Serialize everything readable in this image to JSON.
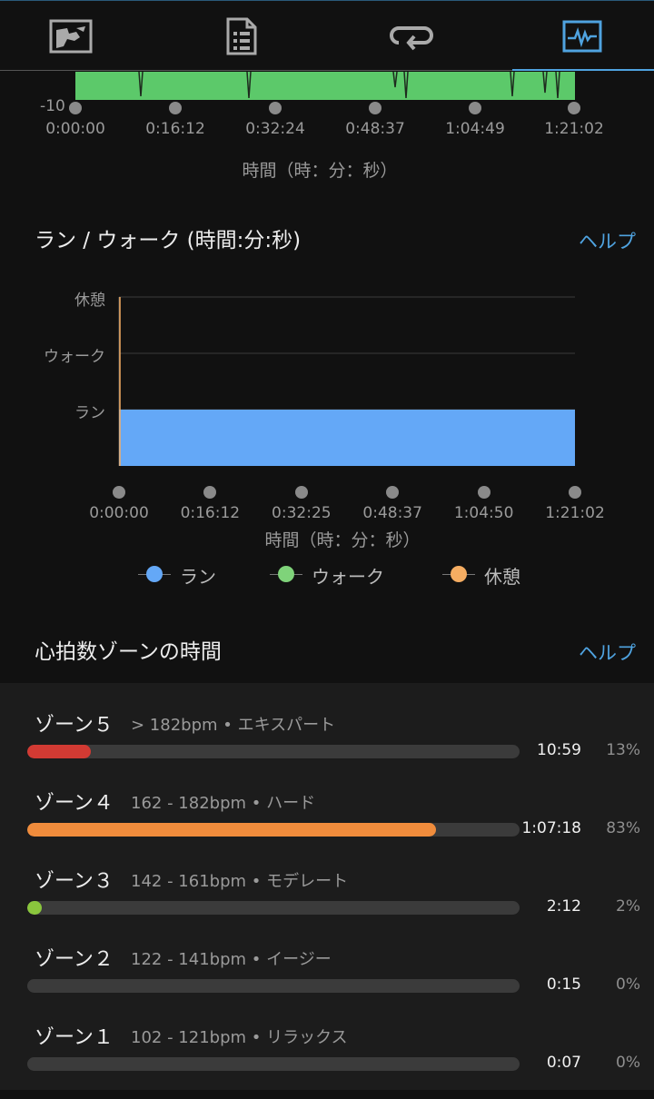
{
  "tabs": [
    {
      "name": "tab-map",
      "icon": "map-icon",
      "active": false
    },
    {
      "name": "tab-details",
      "icon": "document-list-icon",
      "active": false
    },
    {
      "name": "tab-laps",
      "icon": "laps-repeat-icon",
      "active": false
    },
    {
      "name": "tab-charts",
      "icon": "chart-pulse-icon",
      "active": true
    }
  ],
  "top_chart": {
    "y_tick": "-10",
    "x_ticks": [
      "0:00:00",
      "0:16:12",
      "0:32:24",
      "0:48:37",
      "1:04:49",
      "1:21:02"
    ],
    "axis_title": "時間（時：分：秒）",
    "color": "#5cc96a"
  },
  "runwalk": {
    "title": "ラン / ウォーク (時間:分:秒)",
    "help": "ヘルプ"
  },
  "chart_data": {
    "type": "area",
    "title": "ラン / ウォーク (時間:分:秒)",
    "y_categories": [
      "ラン",
      "ウォーク",
      "休憩"
    ],
    "x_ticks": [
      "0:00:00",
      "0:16:12",
      "0:32:25",
      "0:48:37",
      "1:04:50",
      "1:21:02"
    ],
    "xlabel": "時間（時：分：秒）",
    "series": [
      {
        "name": "ラン",
        "color": "#64a8f7",
        "segments": [
          [
            "0:00:00",
            "1:21:02"
          ]
        ]
      },
      {
        "name": "ウォーク",
        "color": "#7fd37a",
        "segments": []
      },
      {
        "name": "休憩",
        "color": "#f5ad62",
        "segments": []
      }
    ],
    "grid": true,
    "legend_position": "bottom"
  },
  "legend": [
    {
      "label": "ラン",
      "color": "#64a8f7"
    },
    {
      "label": "ウォーク",
      "color": "#7fd37a"
    },
    {
      "label": "休憩",
      "color": "#f5ad62"
    }
  ],
  "hrzones": {
    "title": "心拍数ゾーンの時間",
    "help": "ヘルプ",
    "zones": [
      {
        "name": "ゾーン５",
        "range": "> 182bpm • エキスパート",
        "time": "10:59",
        "percent": "13%",
        "fraction": 0.13,
        "color": "#d23a33"
      },
      {
        "name": "ゾーン４",
        "range": "162 - 182bpm • ハード",
        "time": "1:07:18",
        "percent": "83%",
        "fraction": 0.83,
        "color": "#f08c3c"
      },
      {
        "name": "ゾーン３",
        "range": "142 - 161bpm • モデレート",
        "time": "2:12",
        "percent": "2%",
        "fraction": 0.02,
        "color": "#8ac63d"
      },
      {
        "name": "ゾーン２",
        "range": "122 - 141bpm • イージー",
        "time": "0:15",
        "percent": "0%",
        "fraction": 0.0,
        "color": "#3b82d6"
      },
      {
        "name": "ゾーン１",
        "range": "102 - 121bpm • リラックス",
        "time": "0:07",
        "percent": "0%",
        "fraction": 0.0,
        "color": "#9a9a9a"
      }
    ]
  }
}
